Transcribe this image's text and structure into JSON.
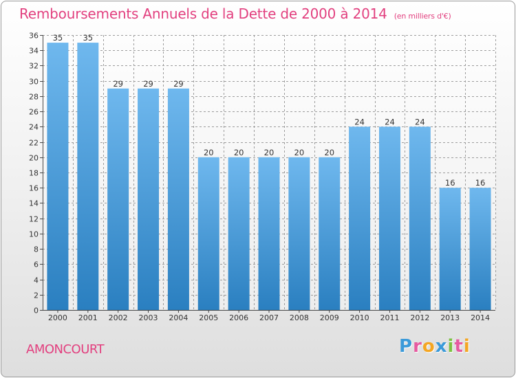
{
  "title": "Remboursements Annuels de la Dette de 2000 à 2014",
  "subtitle": "(en milliers d'€)",
  "town": "AMONCOURT",
  "logo": {
    "letters": [
      "P",
      "r",
      "o",
      "x",
      "i",
      "t",
      "i"
    ],
    "colors": [
      "#3a9ad9",
      "#e65aa0",
      "#f4a623",
      "#3a9ad9",
      "#7cc242",
      "#e65aa0",
      "#f4a623"
    ]
  },
  "colors": {
    "title": "#e2407f",
    "bar_light": "#6fb8ee",
    "bar_dark": "#2a7fc0",
    "grid": "#9c9c9c"
  },
  "chart_data": {
    "type": "bar",
    "categories": [
      "2000",
      "2001",
      "2002",
      "2003",
      "2004",
      "2005",
      "2006",
      "2007",
      "2008",
      "2009",
      "2010",
      "2011",
      "2012",
      "2013",
      "2014"
    ],
    "values": [
      35,
      35,
      29,
      29,
      29,
      20,
      20,
      20,
      20,
      20,
      24,
      24,
      24,
      16,
      16
    ],
    "title": "Remboursements Annuels de la Dette de 2000 à 2014",
    "subtitle": "(en milliers d'€)",
    "xlabel": "",
    "ylabel": "",
    "ylim": [
      0,
      36
    ],
    "ytick_step": 2,
    "grid": true,
    "data_labels": true
  }
}
